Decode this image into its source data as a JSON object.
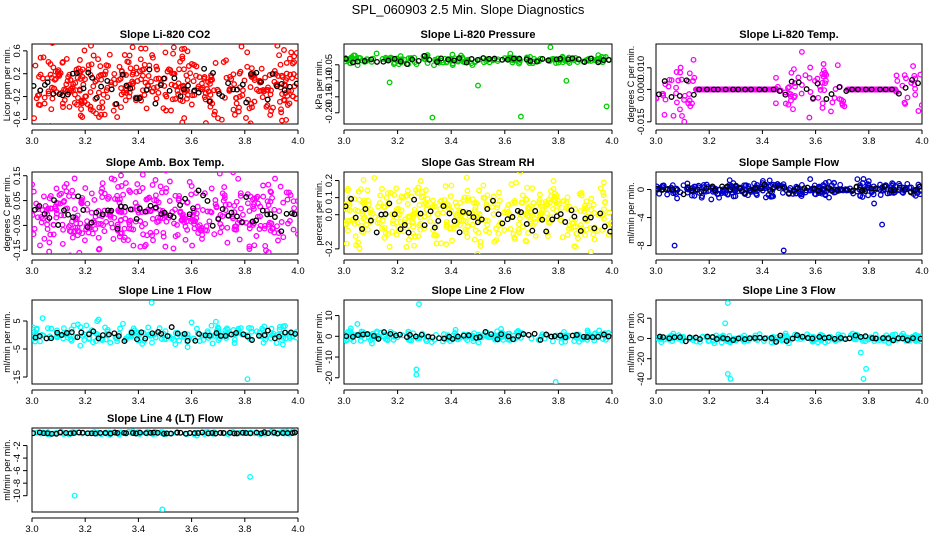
{
  "figure_title": "SPL_060903  2.5 Min. Slope Diagnostics",
  "chart_data": [
    {
      "type": "scatter",
      "title": "Slope Li-820 CO2",
      "ylabel": "Licor ppm per min.",
      "xlim": [
        3.0,
        4.0
      ],
      "xticks": [
        "3.0",
        "3.2",
        "3.4",
        "3.6",
        "3.8",
        "4.0"
      ],
      "ylim": [
        -0.68,
        0.72
      ],
      "yticks": [
        "-0.6",
        "-0.2",
        "0.2",
        "0.6"
      ],
      "ytick_values": [
        -0.6,
        -0.2,
        0.2,
        0.6
      ],
      "color": "#ff0000",
      "spread": 0.32,
      "n": 430,
      "n_black": 55,
      "outliers": [],
      "flat": []
    },
    {
      "type": "scatter",
      "title": "Slope Li-820 Pressure",
      "ylabel": "kPa per min.",
      "xlim": [
        3.0,
        4.0
      ],
      "xticks": [
        "3.0",
        "3.2",
        "3.4",
        "3.6",
        "3.8",
        "4.0"
      ],
      "ylim": [
        -0.235,
        0.015
      ],
      "yticks": [
        "-0.20",
        "-0.15",
        "-0.10",
        "-0.05"
      ],
      "ytick_values": [
        -0.2,
        -0.15,
        -0.1,
        -0.05
      ],
      "color": "#00cc00",
      "spread": 0.007,
      "n": 200,
      "n_black": 45,
      "center": -0.035,
      "outliers": [
        [
          3.17,
          -0.105
        ],
        [
          3.33,
          -0.215
        ],
        [
          3.5,
          -0.115
        ],
        [
          3.66,
          -0.212
        ],
        [
          3.77,
          0.005
        ],
        [
          3.83,
          -0.1
        ],
        [
          3.98,
          -0.18
        ]
      ],
      "flat": []
    },
    {
      "type": "scatter",
      "title": "Slope Li-820 Temp.",
      "ylabel": "degrees C per min.",
      "xlim": [
        3.0,
        4.0
      ],
      "xticks": [
        "3.0",
        "3.2",
        "3.4",
        "3.6",
        "3.8",
        "4.0"
      ],
      "ylim": [
        -0.016,
        0.021
      ],
      "yticks": [
        "-0.015",
        "0.000",
        "0.010"
      ],
      "ytick_values": [
        -0.015,
        0.0,
        0.01
      ],
      "color": "#ff00ff",
      "spread": 0.006,
      "n": 220,
      "n_black": 40,
      "outliers": [],
      "flat": [
        [
          3.15,
          3.45
        ],
        [
          3.72,
          3.9
        ]
      ]
    },
    {
      "type": "scatter",
      "title": "Slope Amb. Box Temp.",
      "ylabel": "degrees C per min.",
      "xlim": [
        3.0,
        4.0
      ],
      "xticks": [
        "3.0",
        "3.2",
        "3.4",
        "3.6",
        "3.8",
        "4.0"
      ],
      "ylim": [
        -0.165,
        0.165
      ],
      "yticks": [
        "-0.15",
        "-0.05",
        "0.05",
        "0.15"
      ],
      "ytick_values": [
        -0.15,
        -0.05,
        0.05,
        0.15
      ],
      "color": "#ff00ff",
      "spread": 0.07,
      "n": 430,
      "n_black": 55,
      "outliers": [],
      "flat": []
    },
    {
      "type": "scatter",
      "title": "Slope Gas Stream RH",
      "ylabel": "percent per min.",
      "xlim": [
        3.0,
        4.0
      ],
      "xticks": [
        "3.0",
        "3.2",
        "3.4",
        "3.6",
        "3.8",
        "4.0"
      ],
      "ylim": [
        -0.23,
        0.25
      ],
      "yticks": [
        "-0.2",
        "0.0",
        "0.1",
        "0.2"
      ],
      "ytick_values": [
        -0.2,
        0.0,
        0.1,
        0.2
      ],
      "color": "#ffff00",
      "spread": 0.1,
      "n": 430,
      "n_black": 55,
      "outliers": [],
      "flat": []
    },
    {
      "type": "scatter",
      "title": "Slope Sample Flow",
      "ylabel": "ml/min per min.",
      "xlim": [
        3.0,
        4.0
      ],
      "xticks": [
        "3.0",
        "3.2",
        "3.4",
        "3.6",
        "3.8",
        "4.0"
      ],
      "ylim": [
        -9.2,
        2.5
      ],
      "yticks": [
        "-8",
        "-4",
        "0"
      ],
      "ytick_values": [
        -8,
        -4,
        0
      ],
      "color": "#0000cc",
      "spread": 0.5,
      "n": 300,
      "n_black": 55,
      "outliers": [
        [
          3.07,
          -8.0
        ],
        [
          3.48,
          -8.7
        ],
        [
          3.78,
          1.5
        ],
        [
          3.8,
          1.2
        ],
        [
          3.82,
          -2.0
        ],
        [
          3.85,
          -5.0
        ]
      ],
      "flat": []
    },
    {
      "type": "scatter",
      "title": "Slope Line 1 Flow",
      "ylabel": "ml/min per min.",
      "xlim": [
        3.0,
        4.0
      ],
      "xticks": [
        "3.0",
        "3.2",
        "3.4",
        "3.6",
        "3.8",
        "4.0"
      ],
      "ylim": [
        -17.5,
        12.5
      ],
      "yticks": [
        "-15",
        "-5",
        "5"
      ],
      "ytick_values": [
        -15,
        -5,
        5
      ],
      "color": "#00ffff",
      "spread": 1.8,
      "n": 200,
      "n_black": 50,
      "outliers": [
        [
          3.45,
          11.5
        ],
        [
          3.81,
          -15.8
        ],
        [
          3.04,
          6.0
        ],
        [
          3.25,
          5.5
        ],
        [
          3.6,
          4.5
        ]
      ],
      "flat": []
    },
    {
      "type": "scatter",
      "title": "Slope Line 2 Flow",
      "ylabel": "ml/min per min.",
      "xlim": [
        3.0,
        4.0
      ],
      "xticks": [
        "3.0",
        "3.2",
        "3.4",
        "3.6",
        "3.8",
        "4.0"
      ],
      "ylim": [
        -23.0,
        17.5
      ],
      "yticks": [
        "-20",
        "-10",
        "0",
        "10"
      ],
      "ytick_values": [
        -20,
        -10,
        0,
        10
      ],
      "color": "#00ffff",
      "spread": 1.4,
      "n": 200,
      "n_black": 50,
      "outliers": [
        [
          3.27,
          -16.0
        ],
        [
          3.27,
          -18.5
        ],
        [
          3.28,
          15.5
        ],
        [
          3.79,
          -22.0
        ],
        [
          3.05,
          6.0
        ]
      ],
      "flat": []
    },
    {
      "type": "scatter",
      "title": "Slope Line 3 Flow",
      "ylabel": "ml/min per min.",
      "xlim": [
        3.0,
        4.0
      ],
      "xticks": [
        "3.0",
        "3.2",
        "3.4",
        "3.6",
        "3.8",
        "4.0"
      ],
      "ylim": [
        -45.0,
        38.0
      ],
      "yticks": [
        "-40",
        "-20",
        "0",
        "20"
      ],
      "ytick_values": [
        -40,
        -20,
        0,
        20
      ],
      "color": "#00ffff",
      "spread": 2.2,
      "n": 200,
      "n_black": 50,
      "outliers": [
        [
          3.27,
          -35.0
        ],
        [
          3.28,
          -40.0
        ],
        [
          3.27,
          35.0
        ],
        [
          3.26,
          15.0
        ],
        [
          3.78,
          -40.0
        ],
        [
          3.79,
          -30.0
        ],
        [
          3.77,
          -14.0
        ]
      ],
      "flat": []
    },
    {
      "type": "scatter",
      "title": "Slope Line 4 (LT) Flow",
      "ylabel": "ml/min per min.",
      "xlim": [
        3.0,
        4.0
      ],
      "xticks": [
        "3.0",
        "3.2",
        "3.4",
        "3.6",
        "3.8",
        "4.0"
      ],
      "ylim": [
        -12.6,
        0.8
      ],
      "yticks": [
        "-10",
        "-8",
        "-6",
        "-4",
        "-2"
      ],
      "ytick_values": [
        -10,
        -8,
        -6,
        -4,
        -2
      ],
      "color": "#00ffff",
      "spread": 0.12,
      "n": 120,
      "n_black": 60,
      "center": 0.0,
      "outliers": [
        [
          3.16,
          -10.0
        ],
        [
          3.49,
          -12.2
        ],
        [
          3.82,
          -7.0
        ]
      ],
      "flat": []
    }
  ]
}
